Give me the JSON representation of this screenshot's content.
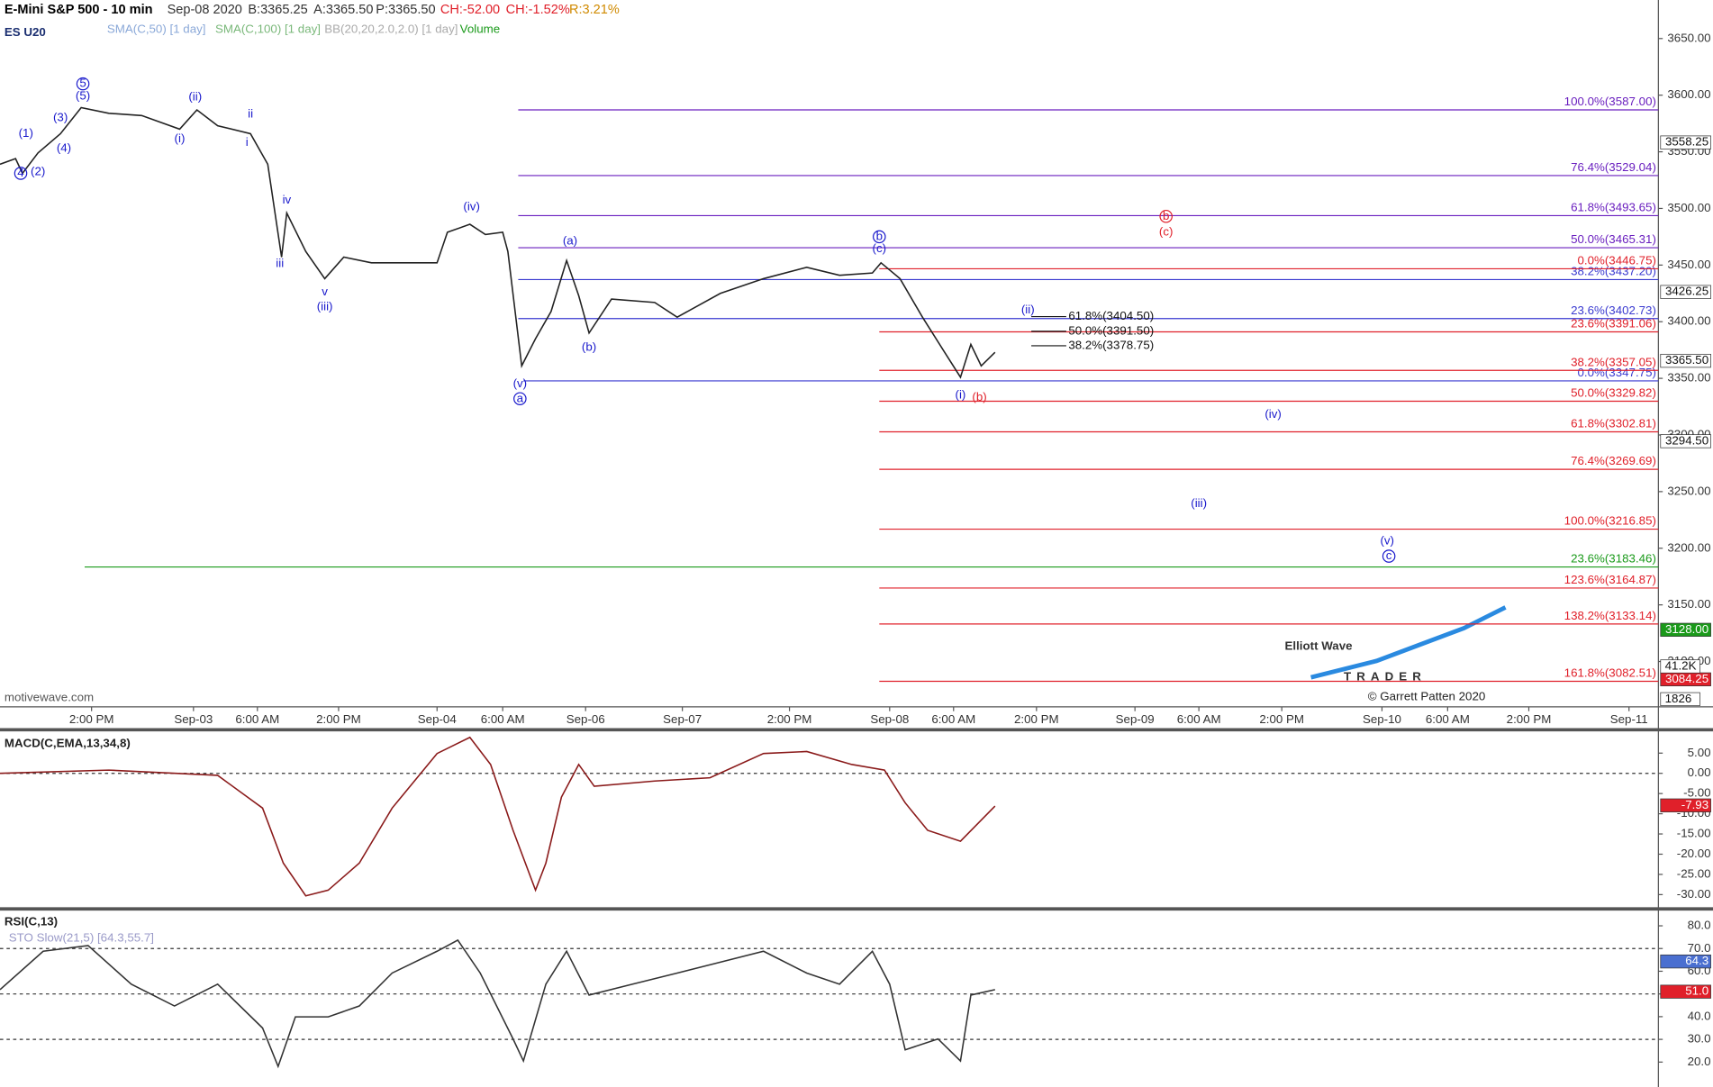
{
  "header": {
    "title": "E-Mini S&P 500 - 10 min",
    "date": "Sep-08 2020",
    "bid": "B:3365.25",
    "ask": "A:3365.50",
    "price": "P:3365.50",
    "change": "CH:-52.00",
    "change_pct": "CH:-1.52%",
    "range": "R:3.21%",
    "symbol": "ES U20",
    "studies": [
      "SMA(C,50) [1 day]",
      "SMA(C,100) [1 day]",
      "BB(20,20,2.0,2.0) [1 day]",
      "Volume"
    ],
    "watermark": "motivewave.com"
  },
  "logo": {
    "line1": "Elliott Wave",
    "line2": "TRADER",
    "copyright": "© Garrett Patten 2020"
  },
  "chart_data": [
    {
      "type": "line",
      "x": [
        0,
        9,
        13,
        22,
        35,
        47,
        63,
        82,
        104,
        114,
        126,
        145,
        155,
        163,
        166,
        177,
        188,
        199,
        215,
        234,
        253,
        259,
        272,
        281,
        291,
        294,
        302,
        310,
        319,
        328,
        335,
        341,
        354,
        379,
        392,
        417,
        442,
        467,
        486,
        505,
        510,
        521,
        534,
        546,
        556,
        562,
        568,
        576
      ],
      "series": [
        {
          "color": "#222222",
          "values": [
            3539,
            3544,
            3531,
            3549,
            3566,
            3589,
            3584,
            3582,
            3570,
            3587,
            3573,
            3566,
            3539,
            3457,
            3496,
            3462,
            3438,
            3457,
            3452,
            3452,
            3452,
            3479,
            3486,
            3477,
            3479,
            3462,
            3361,
            3385,
            3409,
            3454,
            3423,
            3390,
            3420,
            3417,
            3404,
            3425,
            3438,
            3448,
            3441,
            3443,
            3452,
            3438,
            3404,
            3375,
            3351,
            3380,
            3361,
            3373
          ]
        }
      ],
      "xlim": [
        0,
        960
      ],
      "xticks": [
        {
          "value": 53,
          "label": "2:00 PM"
        },
        {
          "value": 112,
          "label": "Sep-03"
        },
        {
          "value": 149,
          "label": "6:00 AM"
        },
        {
          "value": 196,
          "label": "2:00 PM"
        },
        {
          "value": 253,
          "label": "Sep-04"
        },
        {
          "value": 291,
          "label": "6:00 AM"
        },
        {
          "value": 339,
          "label": "Sep-06"
        },
        {
          "value": 395,
          "label": "Sep-07"
        },
        {
          "value": 457,
          "label": "2:00 PM"
        },
        {
          "value": 515,
          "label": "Sep-08"
        },
        {
          "value": 552,
          "label": "6:00 AM"
        },
        {
          "value": 600,
          "label": "2:00 PM"
        },
        {
          "value": 657,
          "label": "Sep-09"
        },
        {
          "value": 694,
          "label": "6:00 AM"
        },
        {
          "value": 742,
          "label": "2:00 PM"
        },
        {
          "value": 800,
          "label": "Sep-10"
        },
        {
          "value": 838,
          "label": "6:00 AM"
        },
        {
          "value": 885,
          "label": "2:00 PM"
        },
        {
          "value": 943,
          "label": "Sep-11"
        }
      ],
      "ylim": [
        3060,
        3684
      ],
      "yticks": [
        {
          "value": 3100,
          "label": "3100.00"
        },
        {
          "value": 3150,
          "label": "3150.00"
        },
        {
          "value": 3200,
          "label": "3200.00"
        },
        {
          "value": 3250,
          "label": "3250.00"
        },
        {
          "value": 3300,
          "label": "3300.00"
        },
        {
          "value": 3350,
          "label": "3350.00"
        },
        {
          "value": 3400,
          "label": "3400.00"
        },
        {
          "value": 3450,
          "label": "3450.00"
        },
        {
          "value": 3500,
          "label": "3500.00"
        },
        {
          "value": 3550,
          "label": "3550.00"
        },
        {
          "value": 3600,
          "label": "3600.00"
        },
        {
          "value": 3650,
          "label": "3650.00"
        }
      ],
      "levels": [
        {
          "value": 3587,
          "label": "100.0%(3587.00)",
          "color": "#6a1fbf",
          "x0": 300
        },
        {
          "value": 3529.04,
          "label": "76.4%(3529.04)",
          "color": "#6a1fbf",
          "x0": 300
        },
        {
          "value": 3493.65,
          "label": "61.8%(3493.65)",
          "color": "#6a1fbf",
          "x0": 300
        },
        {
          "value": 3465.31,
          "label": "50.0%(3465.31)",
          "color": "#6a1fbf",
          "x0": 300
        },
        {
          "value": 3437.2,
          "label": "38.2%(3437.20)",
          "color": "#3a3ad0",
          "x0": 300
        },
        {
          "value": 3402.73,
          "label": "23.6%(3402.73)",
          "color": "#3a3ad0",
          "x0": 300
        },
        {
          "value": 3347.75,
          "label": "0.0%(3347.75)",
          "color": "#3a3ad0",
          "x0": 303
        },
        {
          "value": 3446.75,
          "label": "0.0%(3446.75)",
          "color": "#e0202a",
          "x0": 509
        },
        {
          "value": 3391.06,
          "label": "23.6%(3391.06)",
          "color": "#e0202a",
          "x0": 509
        },
        {
          "value": 3357.05,
          "label": "38.2%(3357.05)",
          "color": "#e0202a",
          "x0": 509
        },
        {
          "value": 3329.82,
          "label": "50.0%(3329.82)",
          "color": "#e0202a",
          "x0": 509
        },
        {
          "value": 3302.81,
          "label": "61.8%(3302.81)",
          "color": "#e0202a",
          "x0": 509
        },
        {
          "value": 3269.69,
          "label": "76.4%(3269.69)",
          "color": "#e0202a",
          "x0": 509
        },
        {
          "value": 3216.85,
          "label": "100.0%(3216.85)",
          "color": "#e0202a",
          "x0": 509
        },
        {
          "value": 3183.46,
          "label": "23.6%(3183.46)",
          "color": "#1a9a1a",
          "x0": 49
        },
        {
          "value": 3164.87,
          "label": "123.6%(3164.87)",
          "color": "#e0202a",
          "x0": 509
        },
        {
          "value": 3133.14,
          "label": "138.2%(3133.14)",
          "color": "#e0202a",
          "x0": 509
        },
        {
          "value": 3082.51,
          "label": "161.8%(3082.51)",
          "color": "#e0202a",
          "x0": 509
        }
      ],
      "short_levels": [
        {
          "value": 3404.5,
          "label": "61.8%(3404.50)",
          "color": "#111111",
          "x0": 597
        },
        {
          "value": 3391.5,
          "label": "50.0%(3391.50)",
          "color": "#111111",
          "x0": 597
        },
        {
          "value": 3378.75,
          "label": "38.2%(3378.75)",
          "color": "#111111",
          "x0": 597
        }
      ],
      "price_tags": [
        {
          "value": 3558.25,
          "label": "3558.25",
          "color": "#ffffff"
        },
        {
          "value": 3426.25,
          "label": "3426.25",
          "color": "#ffffff"
        },
        {
          "value": 3365.5,
          "label": "3365.50",
          "color": "#ffffff"
        },
        {
          "value": 3294.5,
          "label": "3294.50",
          "color": "#ffffff"
        },
        {
          "value": 3128,
          "label": "3128.00",
          "color": "#1a9a1a"
        },
        {
          "value": 3084.25,
          "label": "3084.25",
          "color": "#e0202a"
        }
      ],
      "volume_tags": [
        "41.2K",
        "1826"
      ],
      "annotations": [
        {
          "text": "4",
          "x": 12,
          "y": 3531,
          "color": "#1a1acc",
          "circled": true
        },
        {
          "text": "(2)",
          "x": 22,
          "y": 3532,
          "color": "#1a1acc"
        },
        {
          "text": "(1)",
          "x": 15,
          "y": 3566,
          "color": "#1a1acc"
        },
        {
          "text": "(3)",
          "x": 35,
          "y": 3580,
          "color": "#1a1acc"
        },
        {
          "text": "(4)",
          "x": 37,
          "y": 3553,
          "color": "#1a1acc"
        },
        {
          "text": "5",
          "x": 48,
          "y": 3610,
          "color": "#1a1acc",
          "circled": true
        },
        {
          "text": "(5)",
          "x": 48,
          "y": 3599,
          "color": "#1a1acc"
        },
        {
          "text": "(ii)",
          "x": 113,
          "y": 3598,
          "color": "#1a1acc"
        },
        {
          "text": "(i)",
          "x": 104,
          "y": 3561,
          "color": "#1a1acc"
        },
        {
          "text": "ii",
          "x": 145,
          "y": 3583,
          "color": "#1a1acc"
        },
        {
          "text": "i",
          "x": 143,
          "y": 3558,
          "color": "#1a1acc"
        },
        {
          "text": "iv",
          "x": 166,
          "y": 3507,
          "color": "#1a1acc"
        },
        {
          "text": "iii",
          "x": 162,
          "y": 3451,
          "color": "#1a1acc"
        },
        {
          "text": "v",
          "x": 188,
          "y": 3426,
          "color": "#1a1acc"
        },
        {
          "text": "(iii)",
          "x": 188,
          "y": 3413,
          "color": "#1a1acc"
        },
        {
          "text": "(iv)",
          "x": 273,
          "y": 3501,
          "color": "#1a1acc"
        },
        {
          "text": "(v)",
          "x": 301,
          "y": 3345,
          "color": "#1a1acc"
        },
        {
          "text": "a",
          "x": 301,
          "y": 3332,
          "color": "#1a1acc",
          "circled": true
        },
        {
          "text": "(a)",
          "x": 330,
          "y": 3471,
          "color": "#1a1acc"
        },
        {
          "text": "(b)",
          "x": 341,
          "y": 3377,
          "color": "#1a1acc"
        },
        {
          "text": "b",
          "x": 509,
          "y": 3475,
          "color": "#1a1acc",
          "circled": true
        },
        {
          "text": "(c)",
          "x": 509,
          "y": 3464,
          "color": "#1a1acc"
        },
        {
          "text": "(ii)",
          "x": 595,
          "y": 3410,
          "color": "#1a1acc"
        },
        {
          "text": "(i)",
          "x": 556,
          "y": 3335,
          "color": "#1a1acc"
        },
        {
          "text": "(b)",
          "x": 567,
          "y": 3333,
          "color": "#e0202a"
        },
        {
          "text": "b",
          "x": 675,
          "y": 3493,
          "color": "#e0202a",
          "circled": true
        },
        {
          "text": "(c)",
          "x": 675,
          "y": 3479,
          "color": "#e0202a"
        },
        {
          "text": "(iv)",
          "x": 737,
          "y": 3318,
          "color": "#1a1acc"
        },
        {
          "text": "(iii)",
          "x": 694,
          "y": 3239,
          "color": "#1a1acc"
        },
        {
          "text": "(v)",
          "x": 803,
          "y": 3206,
          "color": "#1a1acc"
        },
        {
          "text": "c",
          "x": 804,
          "y": 3193,
          "color": "#1a1acc",
          "circled": true
        }
      ]
    },
    {
      "type": "line",
      "title": "MACD(C,EMA,13,34,8)",
      "x": [
        0,
        63,
        126,
        152,
        164,
        177,
        190,
        208,
        227,
        253,
        272,
        284,
        297,
        310,
        316,
        325,
        335,
        344,
        379,
        411,
        442,
        467,
        493,
        512,
        524,
        537,
        556,
        576
      ],
      "series": [
        {
          "color": "#8a1a1a",
          "values": [
            0,
            0.8,
            -0.5,
            -8.6,
            -22.2,
            -30.3,
            -28.9,
            -22.2,
            -8.6,
            4.9,
            8.9,
            2.2,
            -14.1,
            -28.9,
            -22.2,
            -5.9,
            2.2,
            -3.2,
            -1.9,
            -1.1,
            4.9,
            5.4,
            2.2,
            0.8,
            -7.3,
            -14.1,
            -16.8,
            -8.1
          ]
        }
      ],
      "xlim": [
        0,
        960
      ],
      "ylim": [
        -33,
        9.7
      ],
      "yticks": [
        {
          "value": 5,
          "label": "5.00"
        },
        {
          "value": 0,
          "label": "0.00"
        },
        {
          "value": -5,
          "label": "-5.00"
        },
        {
          "value": -10,
          "label": "-10.00"
        },
        {
          "value": -15,
          "label": "-15.00"
        },
        {
          "value": -20,
          "label": "-20.00"
        },
        {
          "value": -25,
          "label": "-25.00"
        },
        {
          "value": -30,
          "label": "-30.00"
        }
      ],
      "ref_lines": [
        0
      ],
      "price_tags": [
        {
          "value": -7.93,
          "label": "-7.93",
          "color": "#e0202a"
        }
      ]
    },
    {
      "type": "line",
      "title": "RSI(C,13)",
      "subtitle": "STO Slow(21,5) [64.3,55.7]",
      "x": [
        0,
        25,
        51,
        76,
        101,
        126,
        152,
        161,
        171,
        190,
        208,
        227,
        253,
        265,
        278,
        297,
        303,
        316,
        328,
        341,
        366,
        392,
        417,
        442,
        467,
        486,
        505,
        515,
        524,
        543,
        556,
        562,
        576
      ],
      "series": [
        {
          "color": "#333333",
          "values": [
            51.9,
            68.8,
            71.3,
            54.3,
            44.7,
            54.3,
            35,
            18.1,
            39.9,
            39.9,
            44.7,
            59.2,
            68.8,
            73.7,
            59.2,
            30.2,
            20.5,
            54.3,
            68.8,
            49.5,
            54.3,
            59.2,
            64,
            68.8,
            59.2,
            54.3,
            68.8,
            54.3,
            25.4,
            30.2,
            20.5,
            49.5,
            51.9
          ]
        }
      ],
      "xlim": [
        0,
        960
      ],
      "ylim": [
        10,
        86
      ],
      "yticks": [
        {
          "value": 20,
          "label": "20.0"
        },
        {
          "value": 30,
          "label": "30.0"
        },
        {
          "value": 40,
          "label": "40.0"
        },
        {
          "value": 50,
          "label": "50.0"
        },
        {
          "value": 60,
          "label": "60.0"
        },
        {
          "value": 70,
          "label": "70.0"
        },
        {
          "value": 80,
          "label": "80.0"
        }
      ],
      "ref_lines": [
        70,
        50,
        30
      ],
      "price_tags": [
        {
          "value": 64.3,
          "label": "64.3",
          "color": "#4a6fd0"
        },
        {
          "value": 51,
          "label": "51.0",
          "color": "#e0202a"
        }
      ]
    }
  ]
}
